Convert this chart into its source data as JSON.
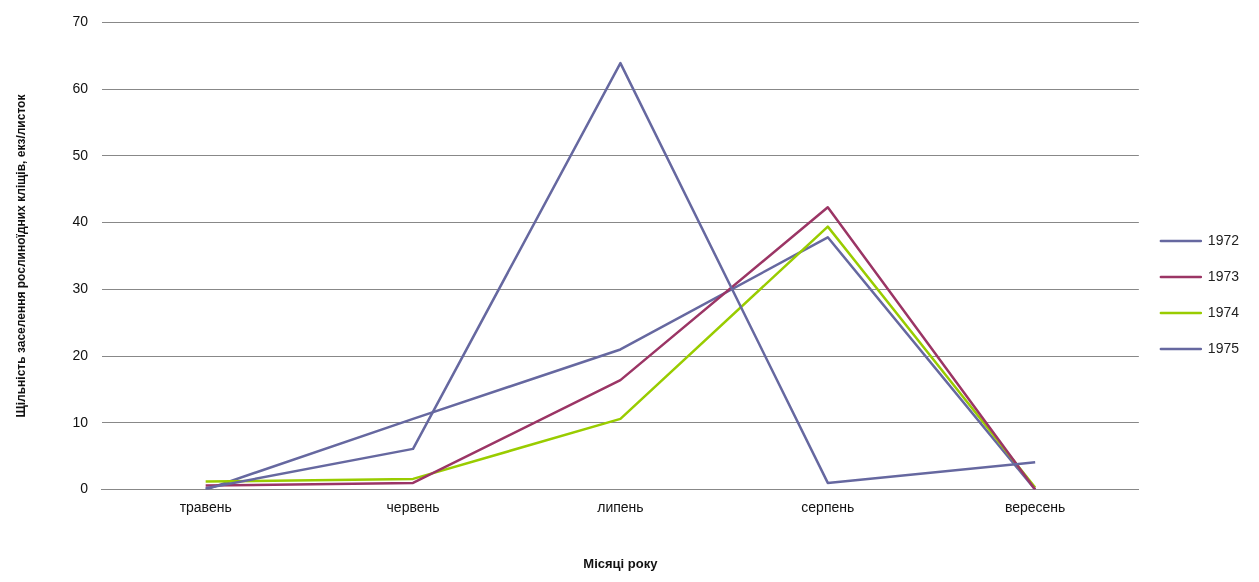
{
  "chart_data": {
    "type": "line",
    "xlabel": "Місяці року",
    "ylabel": "Щільність заселення рослиноїдних кліщів, екз/листок",
    "categories": [
      "травень",
      "червень",
      "липень",
      "серпень",
      "вересень"
    ],
    "series": [
      {
        "name": "1972",
        "color": "#6668a0",
        "values": [
          0.2,
          6.1,
          63.9,
          1,
          4.1
        ]
      },
      {
        "name": "1973",
        "color": "#9b3565",
        "values": [
          0.6,
          1,
          16.4,
          42.3,
          0
        ]
      },
      {
        "name": "1974",
        "color": "#99cc00",
        "values": [
          1.2,
          1.6,
          10.6,
          39.4,
          0.3
        ]
      },
      {
        "name": "1975",
        "color": "#6668a0",
        "values": [
          0,
          10.6,
          21,
          37.8,
          0
        ]
      }
    ],
    "ylim": [
      0,
      70
    ],
    "yticks": [
      0,
      10,
      20,
      30,
      40,
      50,
      60,
      70
    ],
    "grid": "y",
    "legend": "right",
    "marker": "none",
    "line_style": "solid"
  }
}
